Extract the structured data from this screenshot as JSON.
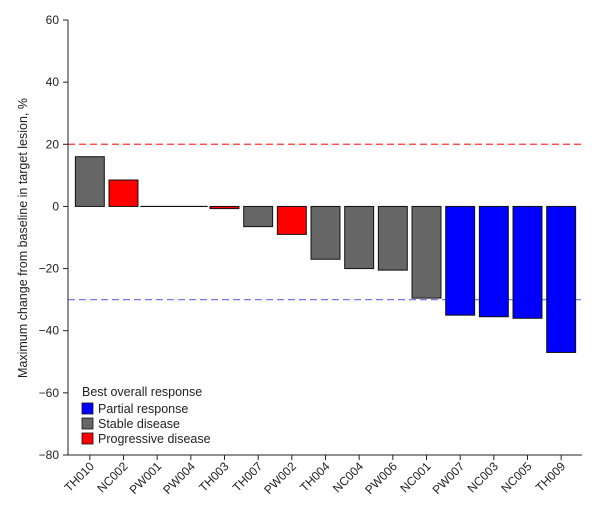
{
  "chart_data": {
    "type": "bar",
    "ylabel": "Maximum change from baseline in target lesion, %",
    "xlabel": "",
    "ylim": [
      -80,
      60
    ],
    "yticks": [
      60,
      40,
      20,
      0,
      -20,
      -40,
      -60,
      -80
    ],
    "ytick_labels": [
      "60",
      "40",
      "20",
      "0",
      "−20",
      "−40",
      "−60",
      "−80"
    ],
    "categories": [
      "TH010",
      "NC002",
      "PW001",
      "PW004",
      "TH003",
      "TH007",
      "PW002",
      "TH004",
      "NC004",
      "PW006",
      "NC001",
      "PW007",
      "NC003",
      "NC005",
      "TH009"
    ],
    "values": [
      16,
      8.5,
      0,
      0,
      -0.7,
      -6.5,
      -9,
      -17,
      -20,
      -20.5,
      -29.5,
      -35,
      -35.5,
      -36,
      -47
    ],
    "response": [
      "SD",
      "PD",
      "SD",
      "SD",
      "PD",
      "SD",
      "PD",
      "SD",
      "SD",
      "SD",
      "SD",
      "PR",
      "PR",
      "PR",
      "PR"
    ],
    "reference_lines": [
      {
        "value": 20,
        "color": "#ff3333",
        "style": "dashed"
      },
      {
        "value": -30,
        "color": "#7777ee",
        "style": "dashed"
      }
    ],
    "legend": {
      "title": "Best overall response",
      "placement": "bottom-left",
      "entries": [
        {
          "key": "PR",
          "label": "Partial response",
          "color": "#0000ff"
        },
        {
          "key": "SD",
          "label": "Stable disease",
          "color": "#666666"
        },
        {
          "key": "PD",
          "label": "Progressive disease",
          "color": "#ff0000"
        }
      ]
    },
    "grid": false
  }
}
